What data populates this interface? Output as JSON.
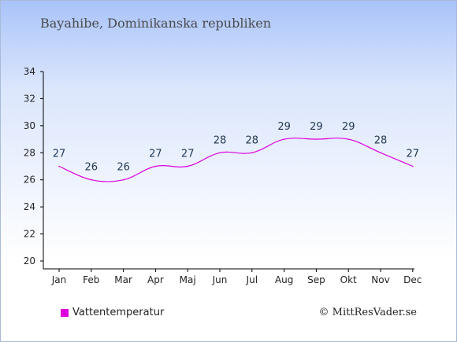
{
  "place": "Bayahibe, Dominikanska republiken",
  "legend": {
    "label": "Vattentemperatur",
    "color": "#dd00dd"
  },
  "credit": "© MittResVader.se",
  "chart_data": {
    "type": "line",
    "categories": [
      "Jan",
      "Feb",
      "Mar",
      "Apr",
      "Maj",
      "Jun",
      "Jul",
      "Aug",
      "Sep",
      "Okt",
      "Nov",
      "Dec"
    ],
    "series": [
      {
        "name": "Vattentemperatur",
        "values": [
          27,
          26,
          26,
          27,
          27,
          28,
          28,
          29,
          29,
          29,
          28,
          27
        ],
        "color": "#dd00dd"
      }
    ],
    "data_labels": [
      "27",
      "26",
      "26",
      "27",
      "27",
      "28",
      "28",
      "29",
      "29",
      "29",
      "28",
      "27"
    ],
    "ylim": [
      20,
      34
    ],
    "yticks": [
      20,
      22,
      24,
      26,
      28,
      30,
      32,
      34
    ],
    "grid": false,
    "legend_position": "bottom-left"
  }
}
